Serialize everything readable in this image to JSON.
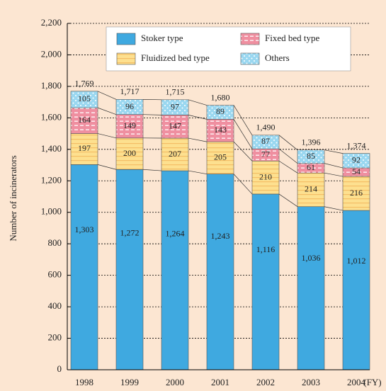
{
  "chart_data": {
    "type": "stacked_bar",
    "y_label": "Number of incinerators",
    "x_unit": "(FY)",
    "categories": [
      "1998",
      "1999",
      "2000",
      "2001",
      "2002",
      "2003",
      "2004"
    ],
    "series": [
      {
        "name": "Stoker type",
        "color": "#3fa9e0",
        "values": [
          1303,
          1272,
          1264,
          1243,
          1116,
          1036,
          1012
        ],
        "value_labels": [
          "1,303",
          "1,272",
          "1,264",
          "1,243",
          "1,116",
          "1,036",
          "1,012"
        ]
      },
      {
        "name": "Fluidized bed type",
        "color": "#fde08f",
        "values": [
          197,
          200,
          207,
          205,
          210,
          214,
          216
        ]
      },
      {
        "name": "Fixed bed type",
        "color": "#ef8fa0",
        "values": [
          164,
          149,
          147,
          143,
          77,
          61,
          54
        ]
      },
      {
        "name": "Others",
        "color": "#9ad7f0",
        "values": [
          105,
          96,
          97,
          89,
          87,
          85,
          92
        ]
      }
    ],
    "totals": [
      1769,
      1717,
      1715,
      1680,
      1490,
      1396,
      1374
    ],
    "totals_labels": [
      "1,769",
      "1,717",
      "1,715",
      "1,680",
      "1,490",
      "1,396",
      "1,374"
    ],
    "ylim": [
      0,
      2200
    ],
    "yticks": [
      0,
      200,
      400,
      600,
      800,
      {
        "value": 1000,
        "label": "1,000"
      },
      {
        "value": 1200,
        "label": "1,200"
      },
      {
        "value": 1400,
        "label": "1,400"
      },
      {
        "value": 1600,
        "label": "1,600"
      },
      {
        "value": 1800,
        "label": "1,800"
      },
      {
        "value": 2000,
        "label": "2,000"
      },
      {
        "value": 2200,
        "label": "2,200"
      }
    ],
    "grid": true,
    "legend": "top"
  }
}
